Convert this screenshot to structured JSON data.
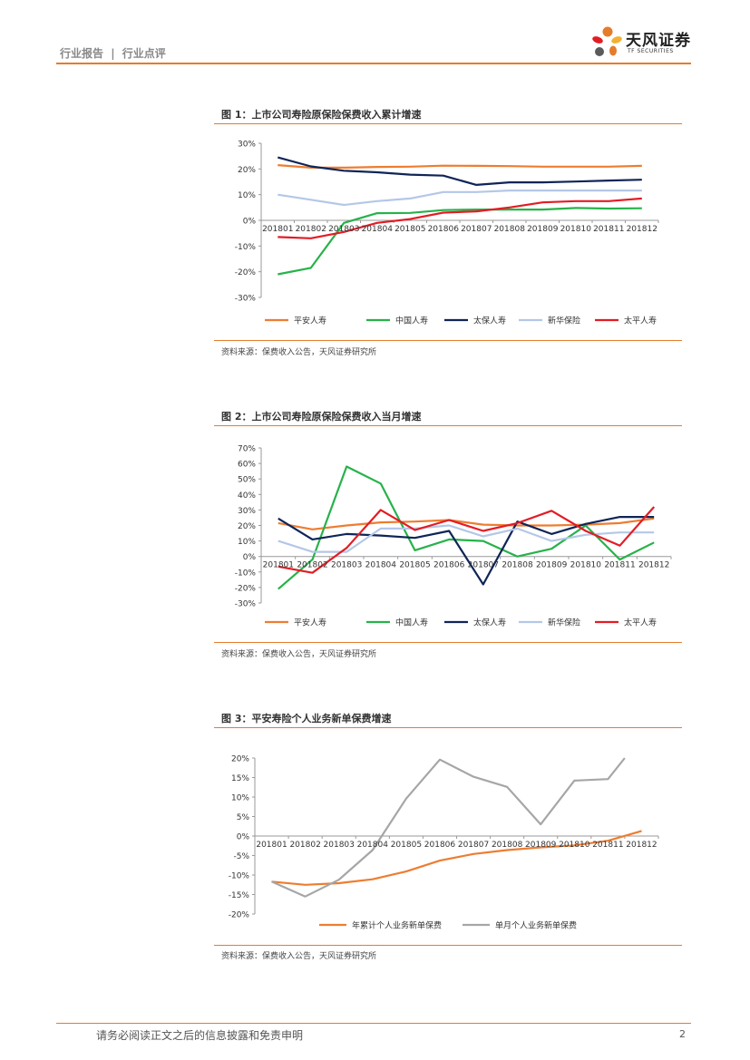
{
  "header": {
    "section": "行业报告",
    "separator": "|",
    "subsection": "行业点评"
  },
  "logo": {
    "name": "天风证券",
    "sub": "TF SECURITIES"
  },
  "colors": {
    "accent": "#e57c2c",
    "pingan": "#ed7d31",
    "china_life": "#27b24a",
    "cpic": "#0f2557",
    "nci": "#b4c7e7",
    "taiping": "#e31c24",
    "monthly_grey": "#a6a6a6"
  },
  "figures": [
    {
      "title": "图 1：上市公司寿险原保险保费收入累计增速",
      "source": "资料来源：保费收入公告，天风证券研究所"
    },
    {
      "title": "图 2：上市公司寿险原保险保费收入当月增速",
      "source": "资料来源：保费收入公告，天风证券研究所"
    },
    {
      "title": "图 3：平安寿险个人业务新单保费增速",
      "source": "资料来源：保费收入公告，天风证券研究所"
    }
  ],
  "chart_data": [
    {
      "type": "line",
      "title": "图 1：上市公司寿险原保险保费收入累计增速",
      "categories": [
        "201801",
        "201802",
        "201803",
        "201804",
        "201805",
        "201806",
        "201807",
        "201808",
        "201809",
        "201810",
        "201811",
        "201812"
      ],
      "ylim": [
        -30,
        30
      ],
      "yticks": [
        "30%",
        "20%",
        "10%",
        "0%",
        "-10%",
        "-20%",
        "-30%"
      ],
      "yticks_values": [
        30,
        20,
        10,
        0,
        -10,
        -20,
        -30
      ],
      "series": [
        {
          "name": "平安人寿",
          "color": "#ed7d31",
          "values": [
            21.5,
            20.5,
            20.5,
            20.8,
            20.9,
            21.3,
            21.2,
            21.1,
            20.9,
            20.9,
            20.9,
            21.2
          ]
        },
        {
          "name": "中国人寿",
          "color": "#27b24a",
          "values": [
            -21,
            -18.5,
            -1,
            2.8,
            2.9,
            4.0,
            4.2,
            4.2,
            4.2,
            4.8,
            4.6,
            4.7
          ]
        },
        {
          "name": "太保人寿",
          "color": "#0f2557",
          "values": [
            24.5,
            21,
            19.3,
            18.7,
            17.8,
            17.4,
            13.8,
            14.8,
            14.8,
            15.1,
            15.5,
            15.8
          ]
        },
        {
          "name": "新华保险",
          "color": "#b4c7e7",
          "values": [
            10,
            8,
            6,
            7.5,
            8.5,
            11,
            11,
            11.6,
            11.6,
            11.6,
            11.6,
            11.6
          ]
        },
        {
          "name": "太平人寿",
          "color": "#e31c24",
          "values": [
            -6.5,
            -7,
            -4.5,
            -1,
            0.5,
            3,
            3.5,
            5,
            7,
            7.5,
            7.5,
            8.5
          ]
        }
      ]
    },
    {
      "type": "line",
      "title": "图 2：上市公司寿险原保险保费收入当月增速",
      "categories": [
        "201801",
        "201802",
        "201803",
        "201804",
        "201805",
        "201806",
        "201807",
        "201808",
        "201809",
        "201810",
        "201811",
        "201812"
      ],
      "ylim": [
        -30,
        70
      ],
      "yticks": [
        "70%",
        "60%",
        "50%",
        "40%",
        "30%",
        "20%",
        "10%",
        "0%",
        "-10%",
        "-20%",
        "-30%"
      ],
      "yticks_values": [
        70,
        60,
        50,
        40,
        30,
        20,
        10,
        0,
        -10,
        -20,
        -30
      ],
      "series": [
        {
          "name": "平安人寿",
          "color": "#ed7d31",
          "values": [
            21.5,
            17.5,
            20,
            22,
            22.5,
            23.5,
            20.5,
            20,
            20,
            20.5,
            21.5,
            24.5
          ]
        },
        {
          "name": "中国人寿",
          "color": "#27b24a",
          "values": [
            -21,
            -2,
            58,
            47,
            4,
            11,
            10,
            0,
            5,
            20,
            -2,
            9
          ]
        },
        {
          "name": "太保人寿",
          "color": "#0f2557",
          "values": [
            24.5,
            11,
            14.5,
            13.5,
            12,
            16.5,
            -18,
            22.5,
            14.5,
            21,
            25.5,
            25.5
          ]
        },
        {
          "name": "新华保险",
          "color": "#b4c7e7",
          "values": [
            10,
            3,
            3,
            18,
            18,
            20,
            13,
            18,
            10,
            14,
            15.5,
            15.5
          ]
        },
        {
          "name": "太平人寿",
          "color": "#e31c24",
          "values": [
            -6.5,
            -10.5,
            5.5,
            30,
            17,
            23.5,
            16.5,
            21.5,
            29.5,
            16.5,
            7,
            32
          ]
        }
      ]
    },
    {
      "type": "line",
      "title": "图 3：平安寿险个人业务新单保费增速",
      "categories": [
        "201801",
        "201802",
        "201803",
        "201804",
        "201805",
        "201806",
        "201807",
        "201808",
        "201809",
        "201810",
        "201811",
        "201812"
      ],
      "ylim": [
        -20,
        20
      ],
      "yticks": [
        "20%",
        "15%",
        "10%",
        "5%",
        "0%",
        "-5%",
        "-10%",
        "-15%",
        "-20%"
      ],
      "yticks_values": [
        20,
        15,
        10,
        5,
        0,
        -5,
        -10,
        -15,
        -20
      ],
      "series": [
        {
          "name": "年累计个人业务新单保费",
          "color": "#ed7d31",
          "values": [
            -11.7,
            -12.5,
            -12.1,
            -11.1,
            -9.1,
            -6.3,
            -4.6,
            -3.6,
            -2.9,
            -2.4,
            -1.2,
            1.3
          ]
        },
        {
          "name": "单月个人业务新单保费",
          "color": "#a6a6a6",
          "values": [
            -11.7,
            -15.5,
            -11.2,
            -3.6,
            9.6,
            19.6,
            15.2,
            12.6,
            3,
            14.2,
            14.6,
            null
          ]
        }
      ],
      "extra_point": {
        "series": 1,
        "x_index": 10.5,
        "value": 20
      }
    }
  ],
  "footer": {
    "disclaimer": "请务必阅读正文之后的信息披露和免责申明",
    "page": "2"
  }
}
